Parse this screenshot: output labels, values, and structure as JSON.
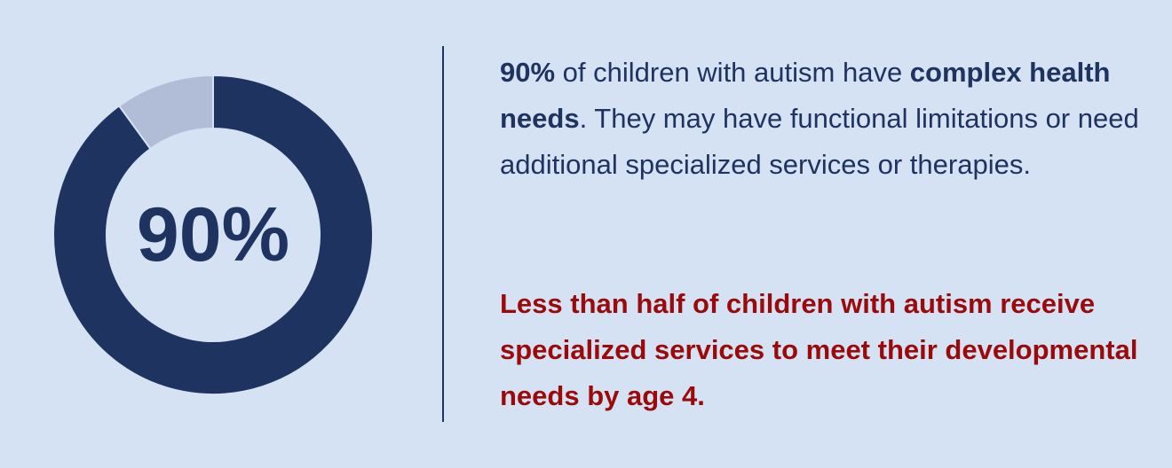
{
  "chart_data": {
    "type": "donut",
    "values": [
      90,
      10
    ],
    "value_labels": [
      "90%",
      null
    ],
    "colors": [
      "#1f3360",
      "#b1bdd6"
    ]
  },
  "paragraphs": [
    [
      {
        "text": "90%",
        "bold": true
      },
      {
        "text": " of children with autism have ",
        "bold": false
      },
      {
        "text": "complex health needs",
        "bold": true
      },
      {
        "text": ". They may have functional limitations or need additional specialized services or therapies.",
        "bold": false
      }
    ],
    [
      {
        "text": "Less than half of children with autism receive specialized services to meet their developmental needs by age 4.",
        "bold": true
      }
    ]
  ]
}
